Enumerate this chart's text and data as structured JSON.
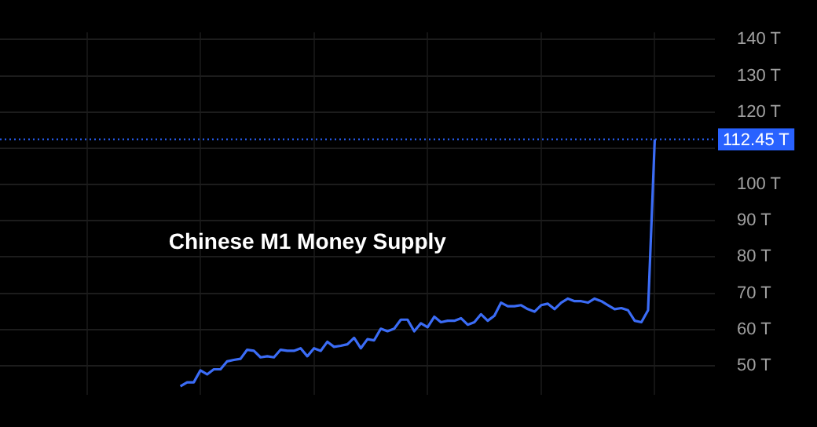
{
  "chart_data": {
    "type": "line",
    "title": "Chinese M1 Money Supply",
    "categories": [
      null,
      null,
      null,
      null,
      null,
      null,
      null,
      null,
      null,
      null,
      null,
      null,
      null,
      null,
      null,
      null,
      null,
      null,
      null,
      null,
      null,
      null,
      null,
      null,
      null,
      null,
      null,
      null,
      null,
      null,
      null,
      null,
      null,
      null,
      null,
      null,
      null,
      null,
      null,
      null,
      null,
      null,
      null,
      null,
      null,
      null,
      null,
      null,
      null,
      null,
      null,
      null,
      null,
      null,
      null,
      null,
      null,
      null,
      null,
      null,
      null,
      null,
      null,
      null,
      null,
      null,
      null,
      null,
      null,
      null,
      null,
      null,
      null,
      null,
      null,
      null,
      null,
      null,
      null,
      null,
      null,
      null,
      null,
      null,
      null,
      null,
      null,
      null,
      null,
      null,
      null,
      null,
      null,
      null,
      null,
      null,
      null,
      null,
      null,
      null,
      null,
      null,
      null,
      null,
      null,
      null,
      null,
      null
    ],
    "series": [
      {
        "color": "#3b6cf6",
        "values": [
          null,
          null,
          null,
          null,
          null,
          null,
          null,
          null,
          null,
          null,
          null,
          null,
          null,
          null,
          null,
          null,
          null,
          null,
          null,
          null,
          null,
          null,
          null,
          null,
          null,
          null,
          null,
          44.3,
          45.4,
          45.4,
          48.7,
          47.6,
          49.0,
          49.0,
          51.2,
          51.6,
          51.9,
          54.4,
          54.1,
          52.3,
          52.6,
          52.3,
          54.4,
          54.1,
          54.1,
          54.8,
          52.6,
          54.8,
          54.1,
          56.6,
          55.2,
          55.5,
          55.9,
          57.7,
          54.8,
          57.3,
          57.0,
          60.2,
          59.5,
          60.2,
          62.7,
          62.7,
          59.5,
          61.7,
          60.6,
          63.5,
          62.0,
          62.4,
          62.4,
          63.1,
          61.3,
          62.0,
          64.2,
          62.4,
          63.8,
          67.4,
          66.4,
          66.4,
          66.7,
          65.6,
          64.9,
          66.7,
          67.1,
          65.6,
          67.4,
          68.5,
          67.8,
          67.8,
          67.4,
          68.5,
          67.8,
          66.7,
          65.6,
          65.9,
          65.3,
          62.4,
          62.0,
          65.3,
          112.45,
          null,
          null,
          null,
          null,
          null,
          null,
          null,
          null,
          null
        ]
      }
    ],
    "ylim": [
      42,
      142
    ],
    "yticks": [
      {
        "value": 50,
        "label": "50 T"
      },
      {
        "value": 60,
        "label": "60 T"
      },
      {
        "value": 70,
        "label": "70 T"
      },
      {
        "value": 80,
        "label": "80 T"
      },
      {
        "value": 90,
        "label": "90 T"
      },
      {
        "value": 100,
        "label": "100 T"
      },
      {
        "value": 110,
        "label": null
      },
      {
        "value": 120,
        "label": "120 T"
      },
      {
        "value": 130,
        "label": "130 T"
      },
      {
        "value": 140,
        "label": "140 T"
      }
    ],
    "ref_lines": [
      {
        "axis": "y",
        "value": 112.45,
        "label": "112.45 T",
        "color": "#2962ff",
        "line_style": "dotted"
      }
    ],
    "grid": true,
    "tick_labels": "y",
    "marker": "none",
    "line_style": "solid",
    "legend": false
  }
}
